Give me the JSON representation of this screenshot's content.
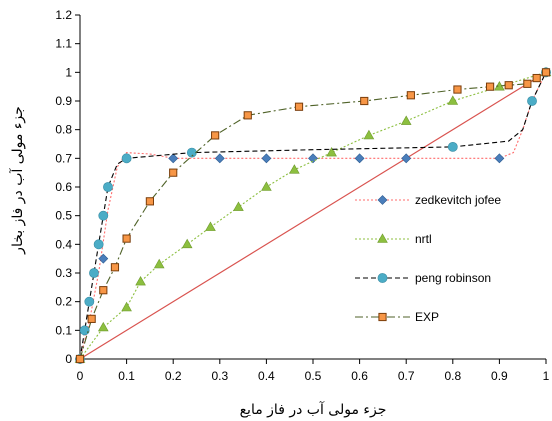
{
  "chart_data": {
    "type": "line",
    "xlabel": "جزء مولی آب در فاز مایع",
    "ylabel": "جزء مولی آب در فاز بخار",
    "xlim": [
      0,
      1
    ],
    "ylim": [
      0,
      1.2
    ],
    "x_ticks": [
      "0",
      "0.1",
      "0.2",
      "0.3",
      "0.4",
      "0.5",
      "0.6",
      "0.7",
      "0.8",
      "0.9",
      "1"
    ],
    "y_ticks": [
      "0",
      "0.1",
      "0.2",
      "0.3",
      "0.4",
      "0.5",
      "0.6",
      "0.7",
      "0.8",
      "0.9",
      "1",
      "1.1",
      "1.2"
    ],
    "grid": false,
    "legend_position": "right",
    "diagonal": {
      "x": [
        0,
        1
      ],
      "y": [
        0,
        1
      ],
      "color": "#d9534f"
    },
    "series": [
      {
        "name": "zedkevitch jofee",
        "marker": "diamond",
        "color": "#4a7ebb",
        "line_color": "#ff6b6b",
        "line_style": "dotted",
        "points": [
          [
            0,
            0
          ],
          [
            0.05,
            0.35
          ],
          [
            0.2,
            0.7
          ],
          [
            0.3,
            0.7
          ],
          [
            0.4,
            0.7
          ],
          [
            0.5,
            0.7
          ],
          [
            0.6,
            0.7
          ],
          [
            0.7,
            0.7
          ],
          [
            0.9,
            0.7
          ],
          [
            1,
            1
          ]
        ],
        "curve": [
          [
            0,
            0
          ],
          [
            0.02,
            0.13
          ],
          [
            0.04,
            0.3
          ],
          [
            0.06,
            0.52
          ],
          [
            0.08,
            0.67
          ],
          [
            0.1,
            0.72
          ],
          [
            0.15,
            0.715
          ],
          [
            0.2,
            0.7
          ],
          [
            0.3,
            0.7
          ],
          [
            0.5,
            0.7
          ],
          [
            0.7,
            0.7
          ],
          [
            0.9,
            0.7
          ],
          [
            0.93,
            0.72
          ],
          [
            0.95,
            0.8
          ],
          [
            0.97,
            0.9
          ],
          [
            1,
            1
          ]
        ]
      },
      {
        "name": "nrtl",
        "marker": "triangle",
        "color": "#8cbf3f",
        "line_color": "#8cbf3f",
        "line_style": "dotted",
        "points": [
          [
            0,
            0
          ],
          [
            0.05,
            0.11
          ],
          [
            0.1,
            0.18
          ],
          [
            0.13,
            0.27
          ],
          [
            0.17,
            0.33
          ],
          [
            0.23,
            0.4
          ],
          [
            0.28,
            0.46
          ],
          [
            0.34,
            0.53
          ],
          [
            0.4,
            0.6
          ],
          [
            0.46,
            0.66
          ],
          [
            0.54,
            0.72
          ],
          [
            0.62,
            0.78
          ],
          [
            0.7,
            0.83
          ],
          [
            0.8,
            0.9
          ],
          [
            0.9,
            0.95
          ],
          [
            1,
            1
          ]
        ]
      },
      {
        "name": "peng robinson",
        "marker": "circle",
        "color": "#4bacc6",
        "line_color": "#000000",
        "line_style": "dashed",
        "points": [
          [
            0,
            0
          ],
          [
            0.01,
            0.1
          ],
          [
            0.02,
            0.2
          ],
          [
            0.03,
            0.3
          ],
          [
            0.04,
            0.4
          ],
          [
            0.05,
            0.5
          ],
          [
            0.06,
            0.6
          ],
          [
            0.1,
            0.7
          ],
          [
            0.24,
            0.72
          ],
          [
            0.8,
            0.74
          ],
          [
            0.97,
            0.9
          ],
          [
            1,
            1
          ]
        ],
        "curve": [
          [
            0,
            0
          ],
          [
            0.01,
            0.1
          ],
          [
            0.02,
            0.2
          ],
          [
            0.03,
            0.3
          ],
          [
            0.04,
            0.4
          ],
          [
            0.05,
            0.5
          ],
          [
            0.06,
            0.6
          ],
          [
            0.08,
            0.68
          ],
          [
            0.1,
            0.7
          ],
          [
            0.24,
            0.72
          ],
          [
            0.5,
            0.73
          ],
          [
            0.8,
            0.74
          ],
          [
            0.92,
            0.76
          ],
          [
            0.95,
            0.8
          ],
          [
            0.97,
            0.9
          ],
          [
            1,
            1
          ]
        ]
      },
      {
        "name": "EXP",
        "marker": "square",
        "color": "#f79646",
        "line_color": "#4f6228",
        "line_style": "dashdot",
        "points": [
          [
            0,
            0
          ],
          [
            0.025,
            0.14
          ],
          [
            0.05,
            0.24
          ],
          [
            0.075,
            0.32
          ],
          [
            0.1,
            0.42
          ],
          [
            0.15,
            0.55
          ],
          [
            0.2,
            0.65
          ],
          [
            0.29,
            0.78
          ],
          [
            0.36,
            0.85
          ],
          [
            0.47,
            0.88
          ],
          [
            0.61,
            0.9
          ],
          [
            0.71,
            0.92
          ],
          [
            0.81,
            0.94
          ],
          [
            0.88,
            0.95
          ],
          [
            0.92,
            0.955
          ],
          [
            0.96,
            0.96
          ],
          [
            0.98,
            0.98
          ],
          [
            1,
            1
          ]
        ]
      }
    ]
  }
}
